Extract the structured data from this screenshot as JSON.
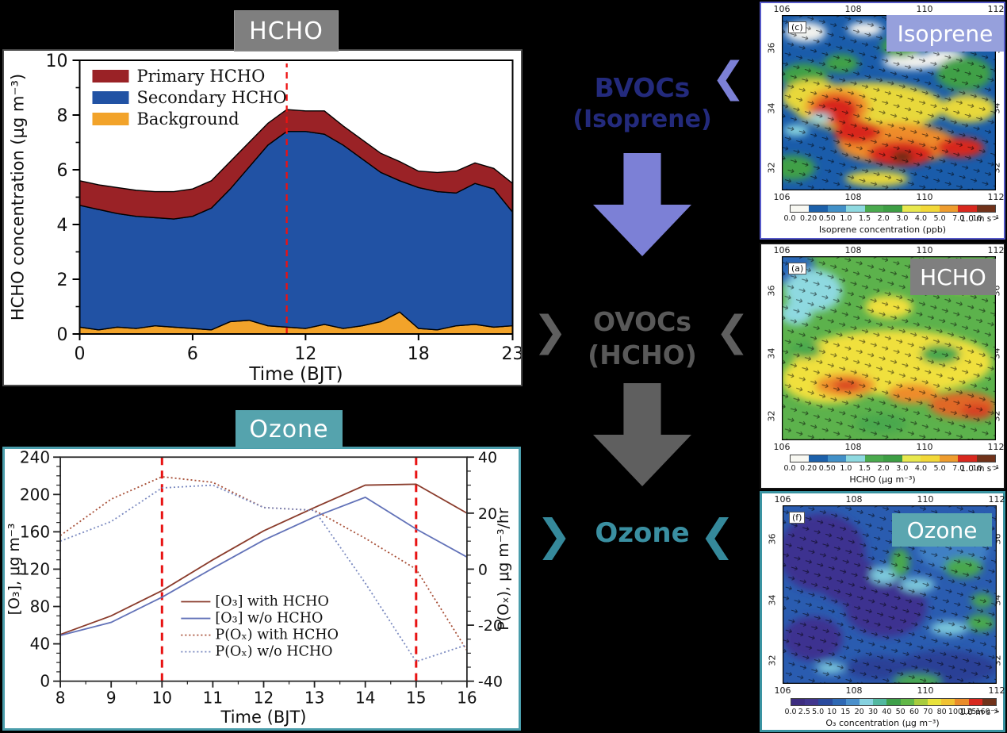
{
  "hcho_panel": {
    "title": "HCHO"
  },
  "ozone_panel": {
    "title": "Ozone"
  },
  "flow": {
    "bvocs": {
      "line1": "BVOCs",
      "line2": "(Isoprene)",
      "text_color": "#232a7c",
      "arrow_color": "#7c80d6"
    },
    "ovocs": {
      "line1": "OVOCs",
      "line2": "(HCHO)",
      "text_color": "#595959",
      "arrow_color": "#5f5f5f"
    },
    "ozone": {
      "label": "Ozone",
      "text_color": "#3a8fa1",
      "arrow_color": "#35899b"
    },
    "chevron_left": "❮",
    "chevron_right": "❯"
  },
  "chart_data": [
    {
      "id": "hcho_diurnal",
      "type": "area",
      "stacked": true,
      "title": "HCHO",
      "xlabel": "Time (BJT)",
      "ylabel": "HCHO concentration (μg m⁻³)",
      "xlim": [
        0,
        23
      ],
      "ylim": [
        0,
        10
      ],
      "x_ticks": [
        0,
        6,
        12,
        18,
        23
      ],
      "y_ticks": [
        0,
        2,
        4,
        6,
        8,
        10
      ],
      "y_minor": [
        1,
        3,
        5,
        7,
        9
      ],
      "x": [
        0,
        1,
        2,
        3,
        4,
        5,
        6,
        7,
        8,
        9,
        10,
        11,
        12,
        13,
        14,
        15,
        16,
        17,
        18,
        19,
        20,
        21,
        22,
        23
      ],
      "legend": [
        "Primary HCHO",
        "Secondary HCHO",
        "Background"
      ],
      "colors": {
        "primary": "#9a2226",
        "secondary": "#2152a4",
        "background": "#f2a32a"
      },
      "dashed_marker_x": 11,
      "stack_tops": {
        "background": [
          0.25,
          0.15,
          0.25,
          0.2,
          0.3,
          0.25,
          0.2,
          0.15,
          0.45,
          0.5,
          0.3,
          0.25,
          0.2,
          0.35,
          0.2,
          0.3,
          0.45,
          0.8,
          0.2,
          0.15,
          0.3,
          0.35,
          0.25,
          0.3
        ],
        "secondary": [
          4.7,
          4.55,
          4.4,
          4.3,
          4.25,
          4.2,
          4.3,
          4.6,
          5.3,
          6.1,
          6.9,
          7.4,
          7.4,
          7.3,
          6.9,
          6.4,
          5.9,
          5.6,
          5.35,
          5.2,
          5.15,
          5.5,
          5.3,
          4.45
        ],
        "total": [
          5.6,
          5.45,
          5.35,
          5.25,
          5.2,
          5.2,
          5.3,
          5.6,
          6.3,
          7.0,
          7.7,
          8.2,
          8.15,
          8.15,
          7.6,
          7.1,
          6.6,
          6.3,
          5.95,
          5.9,
          5.95,
          6.25,
          6.05,
          5.5
        ]
      }
    },
    {
      "id": "ozone_production",
      "type": "line",
      "xlabel": "Time (BJT)",
      "ylabel_left": "[O₃], μg m⁻³",
      "ylabel_right": "P(Oₓ), μg m⁻³/hr",
      "xlim": [
        8,
        16
      ],
      "ylim_left": [
        0,
        240
      ],
      "ylim_right": [
        -40,
        40
      ],
      "x_ticks": [
        8,
        9,
        10,
        11,
        12,
        13,
        14,
        15,
        16
      ],
      "y_ticks_left": [
        0,
        40,
        80,
        120,
        160,
        200,
        240
      ],
      "y_ticks_right": [
        -40,
        -20,
        0,
        20,
        40
      ],
      "x": [
        8,
        9,
        10,
        11,
        12,
        13,
        14,
        15,
        16
      ],
      "dashed_markers_x": [
        10,
        15
      ],
      "series": [
        {
          "name": "[O₃] with HCHO",
          "axis": "left",
          "dashed": false,
          "color": "#8a3c2c",
          "values": [
            50,
            70,
            97,
            130,
            161,
            186,
            210,
            211,
            180
          ]
        },
        {
          "name": "[O₃] w/o HCHO",
          "axis": "left",
          "dashed": false,
          "color": "#6272b8",
          "values": [
            49,
            63,
            90,
            121,
            151,
            176,
            197,
            163,
            133
          ]
        },
        {
          "name": "P(Oₓ) with HCHO",
          "axis": "right",
          "dashed": true,
          "color": "#a85038",
          "values": [
            12,
            25,
            33,
            31,
            22,
            21,
            11,
            0,
            -29
          ]
        },
        {
          "name": "P(Oₓ) w/o HCHO",
          "axis": "right",
          "dashed": true,
          "color": "#7b8ac0",
          "values": [
            10,
            17,
            29,
            30,
            22,
            21,
            -5,
            -33,
            -27
          ]
        }
      ]
    }
  ],
  "maps": [
    {
      "id": "isoprene",
      "title": "Isoprene",
      "title_bg": "#96a0dc",
      "panel_label": "(c)",
      "border": "#5558c8",
      "lon_ticks": [
        "106",
        "108",
        "110",
        "112"
      ],
      "lat_ticks": [
        "36",
        "34",
        "32"
      ],
      "colorbar": {
        "tick_labels": [
          "0.0",
          "0.20",
          "0.50",
          "1.0",
          "1.5",
          "2.0",
          "3.0",
          "4.0",
          "5.0",
          "7.0",
          "10",
          ">"
        ],
        "colors": [
          "#f8f8f2",
          "#1c60aa",
          "#4190c8",
          "#8ed9e0",
          "#4aaa4e",
          "#3d9e44",
          "#e8e84e",
          "#f2d838",
          "#ee9c2e",
          "#d8281e",
          "#70321a"
        ]
      },
      "caption": "Isoprene concentration (ppb)",
      "wind_scale": "1.0 m s⁻¹"
    },
    {
      "id": "hcho",
      "title": "HCHO",
      "title_bg": "#7f7f7f",
      "panel_label": "(a)",
      "border": "#141414",
      "lon_ticks": [
        "106",
        "108",
        "110",
        "112"
      ],
      "lat_ticks": [
        "36",
        "34",
        "32"
      ],
      "colorbar": {
        "tick_labels": [
          "0.0",
          "0.20",
          "0.50",
          "1.0",
          "1.5",
          "2.0",
          "3.0",
          "4.0",
          "5.0",
          "7.0",
          "10",
          ">"
        ],
        "colors": [
          "#f8f8f2",
          "#1c60aa",
          "#4190c8",
          "#8ed9e0",
          "#4aaa4e",
          "#3d9e44",
          "#e8e84e",
          "#f2d838",
          "#ee9c2e",
          "#d8281e",
          "#70321a"
        ]
      },
      "caption": "HCHO (μg m⁻³)",
      "wind_scale": "1.0 m s⁻¹"
    },
    {
      "id": "ozone",
      "title": "Ozone",
      "title_bg": "#5ba6b0",
      "panel_label": "(f)",
      "border": "#3a93a1",
      "lon_ticks": [
        "106",
        "108",
        "110",
        "112"
      ],
      "lat_ticks": [
        "36",
        "34",
        "32"
      ],
      "colorbar": {
        "tick_labels": [
          "0.0",
          "2.5",
          "5.0",
          "10",
          "15",
          "20",
          "30",
          "40",
          "50",
          "60",
          "70",
          "80",
          "100",
          "125",
          "160",
          ">"
        ],
        "colors": [
          "#3d2d80",
          "#41368e",
          "#2a4a9e",
          "#2e68b4",
          "#4a90cc",
          "#86d2e0",
          "#52b8a0",
          "#3fa04a",
          "#62b848",
          "#a8cc3e",
          "#e8e23c",
          "#f0c232",
          "#ea8c2a",
          "#d8281e",
          "#70321a"
        ]
      },
      "caption": "O₃ concentration (μg m⁻³)",
      "wind_scale": "1.0 m s⁻¹"
    }
  ]
}
